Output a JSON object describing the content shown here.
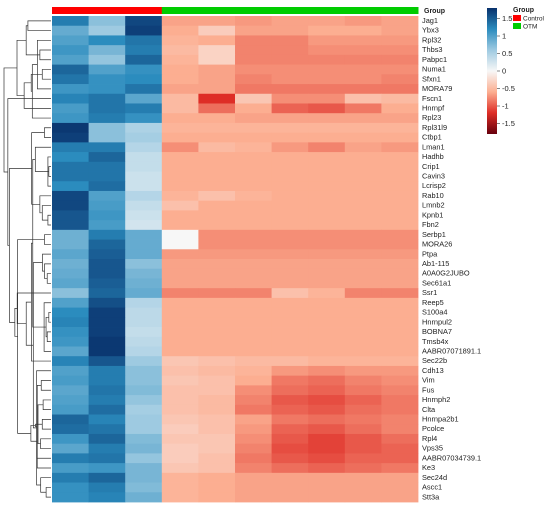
{
  "chart_data": {
    "type": "heatmap",
    "title": "",
    "annotation_track": {
      "title": "Group",
      "columns": [
        "Control",
        "Control",
        "Control",
        "OTM",
        "OTM",
        "OTM",
        "OTM",
        "OTM",
        "OTM",
        "OTM"
      ]
    },
    "legends": {
      "color_scale": {
        "title": "",
        "ticks": [
          1.5,
          1,
          0.5,
          0,
          -0.5,
          -1,
          -1.5
        ],
        "range": [
          -1.8,
          1.8
        ],
        "colors": [
          "#08306b",
          "#2b8cbe",
          "#9ecae1",
          "#f7f7f7",
          "#fcae91",
          "#de2d26",
          "#67000d"
        ]
      },
      "group": {
        "title": "Group",
        "entries": [
          {
            "label": "Control",
            "color": "#ff0000"
          },
          {
            "label": "OTM",
            "color": "#00cc00"
          }
        ]
      }
    },
    "genes": [
      "Jag1",
      "Ybx3",
      "Rpl32",
      "Thbs3",
      "Pabpc1",
      "Numa1",
      "Sfxn1",
      "MORA79",
      "Fscn1",
      "Hnrnpf",
      "Rpl23",
      "Rpl31l9",
      "Ctbp1",
      "Lman1",
      "Hadhb",
      "Crip1",
      "Cavin3",
      "Lcrisp2",
      "Rab10",
      "Lmnb2",
      "Kpnb1",
      "Fbn2",
      "Serbp1",
      "MORA26",
      "Ptpa",
      "Ab1-115",
      "A0A0G2JUBO",
      "Sec61a1",
      "Ssr1",
      "Reep5",
      "S100a4",
      "Hnrnpul2",
      "BOBNA7",
      "Tmsb4x",
      "AABR07071891.1",
      "Sec22b",
      "Cdh13",
      "Vim",
      "Fus",
      "Hnrnph2",
      "Clta",
      "Hnrnpa2b1",
      "Pcolce",
      "Rpl4",
      "Vps35",
      "AABR07034739.1",
      "Ke3",
      "Sec24d",
      "Ascc1",
      "Stt3a"
    ],
    "values": [
      [
        1.3,
        0.7,
        1.65,
        -0.65,
        -0.65,
        -0.7,
        -0.65,
        -0.65,
        -0.7,
        -0.65
      ],
      [
        0.9,
        0.6,
        1.7,
        -0.6,
        -0.35,
        -0.65,
        -0.65,
        -0.6,
        -0.6,
        -0.65
      ],
      [
        1.0,
        1.2,
        1.35,
        -0.55,
        -0.6,
        -0.8,
        -0.8,
        -0.7,
        -0.7,
        -0.7
      ],
      [
        1.1,
        0.8,
        1.3,
        -0.5,
        -0.3,
        -0.8,
        -0.8,
        -0.75,
        -0.75,
        -0.75
      ],
      [
        1.0,
        0.65,
        1.45,
        -0.55,
        -0.3,
        -0.8,
        -0.8,
        -0.8,
        -0.8,
        -0.8
      ],
      [
        1.45,
        1.0,
        1.15,
        -0.6,
        -0.65,
        -0.75,
        -0.75,
        -0.75,
        -0.75,
        -0.75
      ],
      [
        1.35,
        1.15,
        1.2,
        -0.6,
        -0.65,
        -0.8,
        -0.75,
        -0.75,
        -0.75,
        -0.8
      ],
      [
        1.1,
        1.15,
        1.35,
        -0.65,
        -0.65,
        -0.85,
        -0.85,
        -0.85,
        -0.85,
        -0.85
      ],
      [
        1.25,
        1.35,
        0.95,
        -0.5,
        -1.2,
        -0.4,
        -0.75,
        -0.75,
        -0.45,
        -0.5
      ],
      [
        1.05,
        1.35,
        1.3,
        -0.5,
        -0.9,
        -0.6,
        -0.95,
        -1.0,
        -0.85,
        -0.6
      ],
      [
        1.1,
        1.3,
        1.15,
        -0.6,
        -0.6,
        -0.65,
        -0.65,
        -0.65,
        -0.65,
        -0.65
      ],
      [
        1.75,
        0.7,
        0.5,
        -0.55,
        -0.55,
        -0.55,
        -0.55,
        -0.55,
        -0.55,
        -0.55
      ],
      [
        1.7,
        0.7,
        0.55,
        -0.6,
        -0.6,
        -0.6,
        -0.6,
        -0.6,
        -0.6,
        -0.6
      ],
      [
        1.3,
        1.3,
        0.45,
        -0.75,
        -0.5,
        -0.55,
        -0.7,
        -0.8,
        -0.65,
        -0.7
      ],
      [
        1.2,
        1.45,
        0.35,
        -0.6,
        -0.6,
        -0.6,
        -0.6,
        -0.6,
        -0.6,
        -0.6
      ],
      [
        1.35,
        1.35,
        0.35,
        -0.6,
        -0.6,
        -0.6,
        -0.6,
        -0.6,
        -0.6,
        -0.6
      ],
      [
        1.35,
        1.35,
        0.3,
        -0.6,
        -0.6,
        -0.6,
        -0.6,
        -0.6,
        -0.6,
        -0.6
      ],
      [
        1.2,
        1.4,
        0.3,
        -0.6,
        -0.6,
        -0.6,
        -0.6,
        -0.6,
        -0.6,
        -0.6
      ],
      [
        1.65,
        1.0,
        0.45,
        -0.55,
        -0.45,
        -0.55,
        -0.6,
        -0.6,
        -0.6,
        -0.6
      ],
      [
        1.65,
        1.05,
        0.35,
        -0.45,
        -0.6,
        -0.6,
        -0.6,
        -0.6,
        -0.6,
        -0.6
      ],
      [
        1.55,
        1.1,
        0.3,
        -0.6,
        -0.6,
        -0.6,
        -0.6,
        -0.6,
        -0.6,
        -0.6
      ],
      [
        1.55,
        1.05,
        0.25,
        -0.6,
        -0.6,
        -0.6,
        -0.6,
        -0.6,
        -0.6,
        -0.6
      ],
      [
        0.85,
        1.3,
        0.9,
        0.0,
        -0.75,
        -0.75,
        -0.75,
        -0.75,
        -0.75,
        -0.75
      ],
      [
        0.85,
        1.45,
        0.9,
        0.0,
        -0.75,
        -0.75,
        -0.75,
        -0.75,
        -0.75,
        -0.75
      ],
      [
        0.95,
        1.5,
        0.9,
        -0.7,
        -0.7,
        -0.7,
        -0.7,
        -0.7,
        -0.7,
        -0.7
      ],
      [
        0.85,
        1.55,
        0.7,
        -0.65,
        -0.65,
        -0.65,
        -0.65,
        -0.65,
        -0.65,
        -0.65
      ],
      [
        0.9,
        1.55,
        0.8,
        -0.65,
        -0.65,
        -0.65,
        -0.65,
        -0.65,
        -0.65,
        -0.65
      ],
      [
        0.95,
        1.5,
        0.85,
        -0.65,
        -0.65,
        -0.65,
        -0.65,
        -0.65,
        -0.65,
        -0.65
      ],
      [
        0.7,
        1.45,
        0.9,
        -0.8,
        -0.8,
        -0.8,
        -0.45,
        -0.55,
        -0.8,
        -0.8
      ],
      [
        1.0,
        1.6,
        0.45,
        -0.6,
        -0.6,
        -0.6,
        -0.6,
        -0.6,
        -0.6,
        -0.6
      ],
      [
        1.2,
        1.7,
        0.4,
        -0.6,
        -0.6,
        -0.6,
        -0.6,
        -0.6,
        -0.6,
        -0.6
      ],
      [
        1.25,
        1.7,
        0.4,
        -0.6,
        -0.6,
        -0.6,
        -0.6,
        -0.6,
        -0.6,
        -0.6
      ],
      [
        1.15,
        1.7,
        0.35,
        -0.6,
        -0.6,
        -0.6,
        -0.6,
        -0.6,
        -0.6,
        -0.6
      ],
      [
        1.1,
        1.75,
        0.4,
        -0.6,
        -0.6,
        -0.6,
        -0.6,
        -0.6,
        -0.6,
        -0.6
      ],
      [
        0.95,
        1.75,
        0.45,
        -0.6,
        -0.6,
        -0.6,
        -0.6,
        -0.6,
        -0.6,
        -0.6
      ],
      [
        1.25,
        1.55,
        0.6,
        -0.4,
        -0.45,
        -0.5,
        -0.5,
        -0.55,
        -0.55,
        -0.55
      ],
      [
        1.0,
        1.3,
        0.7,
        -0.45,
        -0.5,
        -0.55,
        -0.7,
        -0.75,
        -0.7,
        -0.7
      ],
      [
        1.05,
        1.3,
        0.7,
        -0.4,
        -0.45,
        -0.6,
        -0.85,
        -0.9,
        -0.8,
        -0.75
      ],
      [
        0.95,
        1.35,
        0.75,
        -0.45,
        -0.45,
        -0.75,
        -0.9,
        -0.95,
        -0.85,
        -0.8
      ],
      [
        1.0,
        1.3,
        0.65,
        -0.45,
        -0.5,
        -0.8,
        -1.0,
        -1.05,
        -0.95,
        -0.85
      ],
      [
        1.05,
        1.4,
        0.55,
        -0.45,
        -0.5,
        -0.85,
        -0.95,
        -1.0,
        -0.9,
        -0.85
      ],
      [
        1.45,
        1.25,
        0.6,
        -0.4,
        -0.45,
        -0.65,
        -0.85,
        -0.9,
        -0.85,
        -0.8
      ],
      [
        1.4,
        1.35,
        0.6,
        -0.35,
        -0.45,
        -0.7,
        -0.95,
        -1.0,
        -0.9,
        -0.8
      ],
      [
        1.1,
        1.45,
        0.75,
        -0.4,
        -0.4,
        -0.75,
        -1.0,
        -1.1,
        -1.0,
        -0.9
      ],
      [
        0.95,
        1.3,
        0.8,
        -0.35,
        -0.4,
        -0.8,
        -1.05,
        -1.1,
        -1.0,
        -0.95
      ],
      [
        1.3,
        1.35,
        0.65,
        -0.35,
        -0.45,
        -0.85,
        -1.0,
        -1.05,
        -0.95,
        -0.95
      ],
      [
        1.05,
        1.1,
        0.8,
        -0.4,
        -0.45,
        -0.8,
        -0.9,
        -0.95,
        -0.9,
        -0.85
      ],
      [
        1.3,
        1.45,
        0.8,
        -0.55,
        -0.6,
        -0.65,
        -0.65,
        -0.65,
        -0.65,
        -0.65
      ],
      [
        1.15,
        1.3,
        0.75,
        -0.55,
        -0.6,
        -0.65,
        -0.65,
        -0.65,
        -0.65,
        -0.65
      ],
      [
        1.15,
        1.25,
        0.85,
        -0.55,
        -0.6,
        -0.65,
        -0.65,
        -0.65,
        -0.65,
        -0.65
      ]
    ]
  }
}
